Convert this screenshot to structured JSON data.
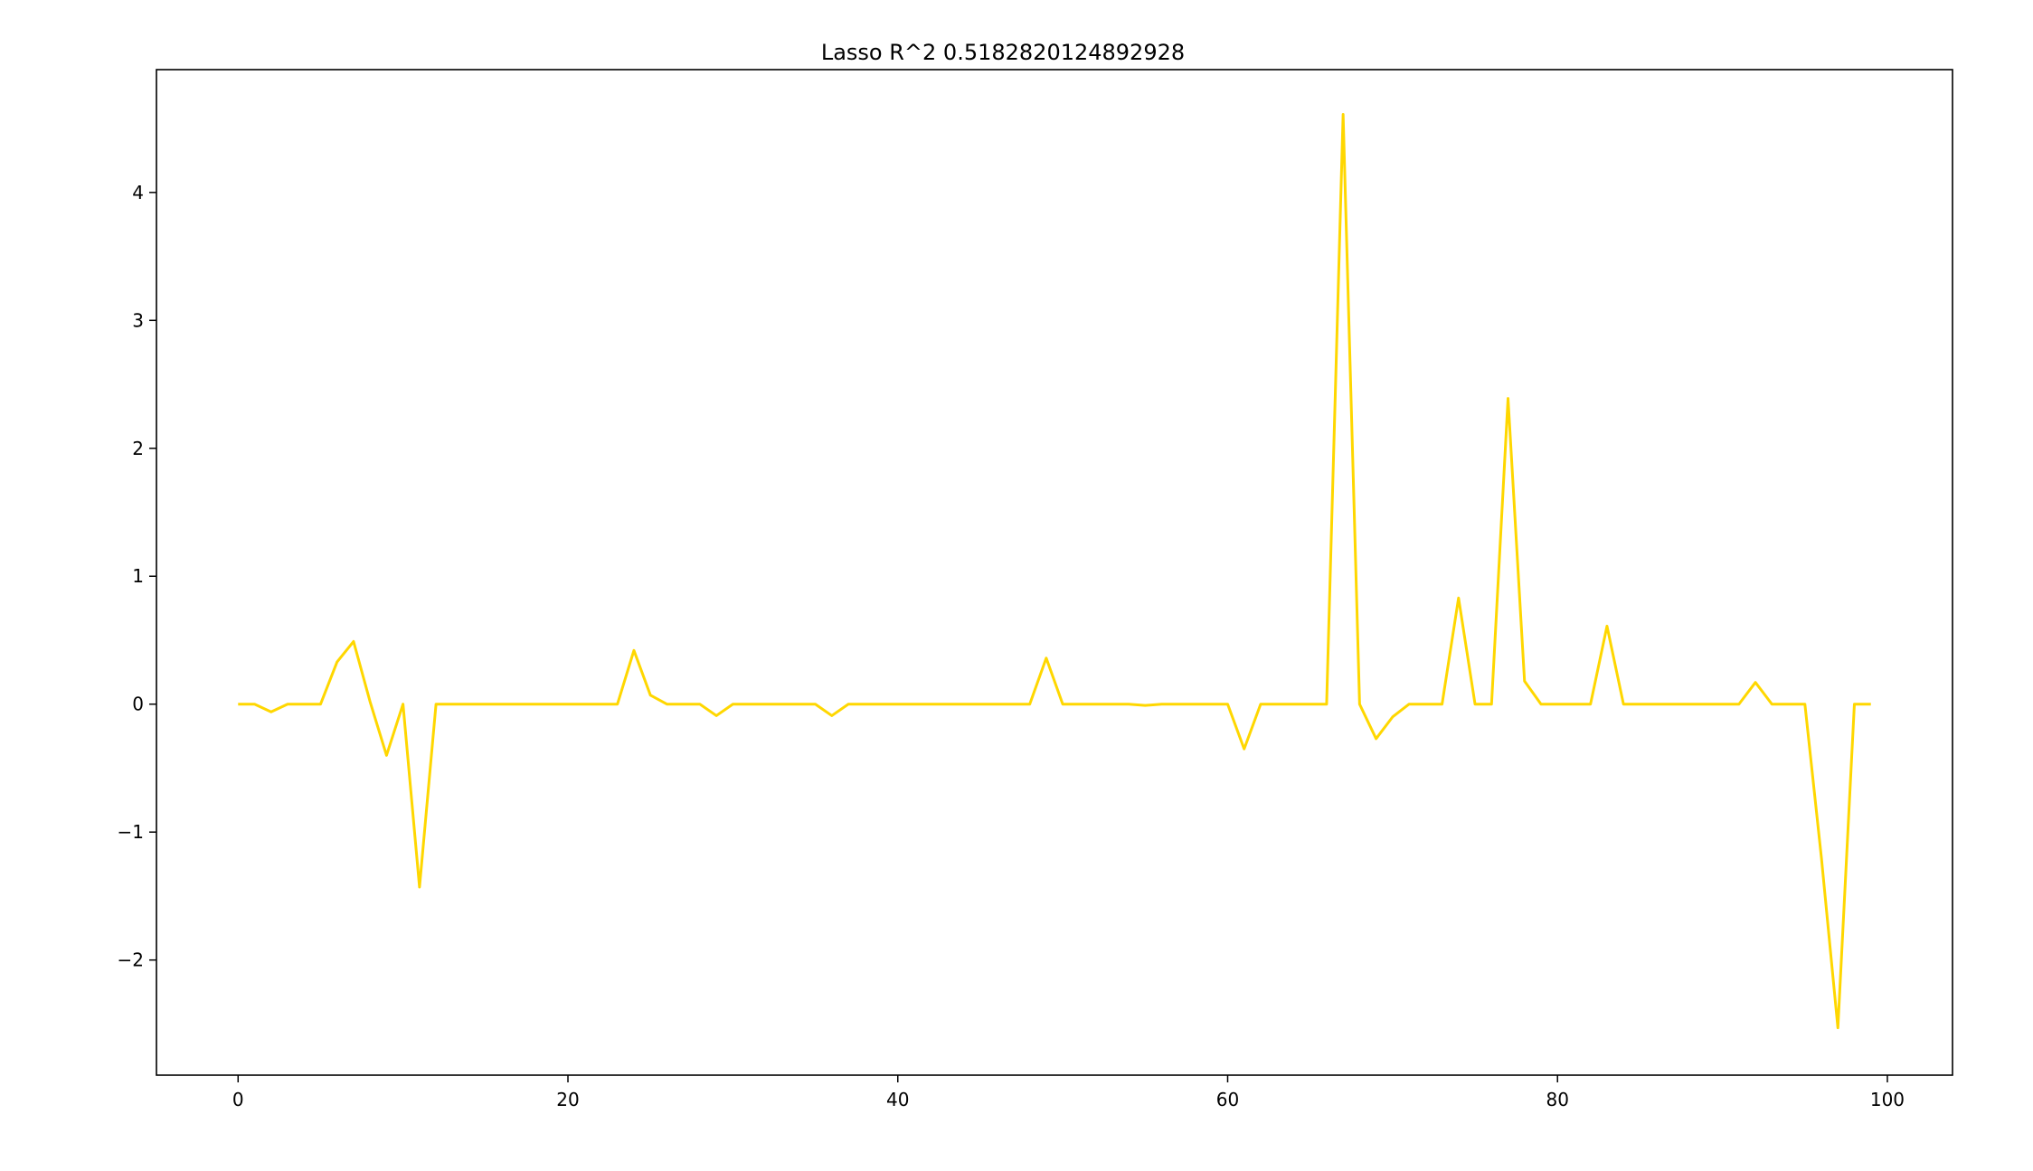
{
  "chart_data": {
    "type": "line",
    "title": "Lasso R^2 0.5182820124892928",
    "xlabel": "",
    "ylabel": "",
    "xlim": [
      -4.95,
      103.95
    ],
    "ylim": [
      -2.9,
      4.96
    ],
    "xticks": [
      0,
      20,
      40,
      60,
      80,
      100
    ],
    "yticks": [
      -2,
      -1,
      0,
      1,
      2,
      3,
      4
    ],
    "xtick_labels": [
      "0",
      "20",
      "40",
      "60",
      "80",
      "100"
    ],
    "ytick_labels": [
      "−2",
      "−1",
      "0",
      "1",
      "2",
      "3",
      "4"
    ],
    "grid": false,
    "legend": "none",
    "series": [
      {
        "color": "#ffd700",
        "x": [
          0,
          1,
          2,
          3,
          4,
          5,
          6,
          7,
          8,
          9,
          10,
          11,
          12,
          13,
          14,
          15,
          16,
          17,
          18,
          19,
          20,
          21,
          22,
          23,
          24,
          25,
          26,
          27,
          28,
          29,
          30,
          31,
          32,
          33,
          34,
          35,
          36,
          37,
          38,
          39,
          40,
          41,
          42,
          43,
          44,
          45,
          46,
          47,
          48,
          49,
          50,
          51,
          52,
          53,
          54,
          55,
          56,
          57,
          58,
          59,
          60,
          61,
          62,
          63,
          64,
          65,
          66,
          67,
          68,
          69,
          70,
          71,
          72,
          73,
          74,
          75,
          76,
          77,
          78,
          79,
          80,
          81,
          82,
          83,
          84,
          85,
          86,
          87,
          88,
          89,
          90,
          91,
          92,
          93,
          94,
          95,
          96,
          97,
          98,
          99
        ],
        "values": [
          0,
          0,
          -0.06,
          0,
          0,
          0,
          0.33,
          0.49,
          0.02,
          -0.4,
          0,
          -1.43,
          0,
          0,
          0,
          0,
          0,
          0,
          0,
          0,
          0,
          0,
          0,
          0,
          0.42,
          0.07,
          0,
          0,
          0,
          -0.09,
          0,
          0,
          0,
          0,
          0,
          0,
          -0.09,
          0,
          0,
          0,
          0,
          0,
          0,
          0,
          0,
          0,
          0,
          0,
          0,
          0.36,
          0,
          0,
          0,
          0,
          0,
          -0.01,
          0,
          0,
          0,
          0,
          0,
          -0.35,
          0,
          0,
          0,
          0,
          0,
          4.61,
          0,
          -0.27,
          -0.1,
          0,
          0,
          0,
          0.83,
          0,
          0,
          2.39,
          0.18,
          0,
          0,
          0,
          0,
          0.61,
          0,
          0,
          0,
          0,
          0,
          0,
          0,
          0,
          0.17,
          0,
          0,
          0,
          -1.2,
          -2.53,
          0,
          0
        ]
      }
    ]
  }
}
